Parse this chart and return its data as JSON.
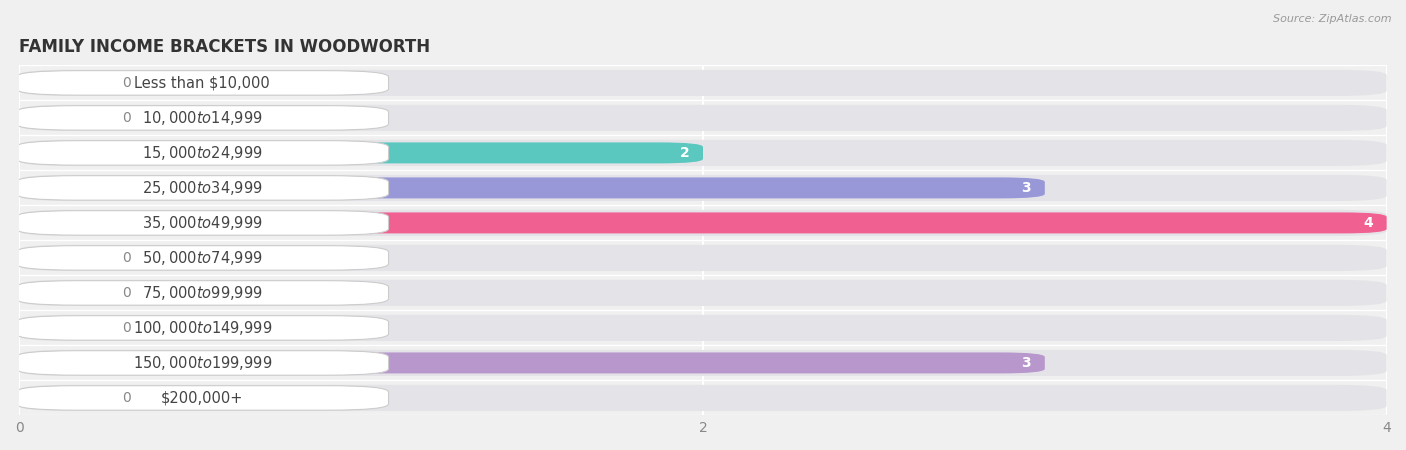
{
  "title": "FAMILY INCOME BRACKETS IN WOODWORTH",
  "source": "Source: ZipAtlas.com",
  "categories": [
    "Less than $10,000",
    "$10,000 to $14,999",
    "$15,000 to $24,999",
    "$25,000 to $34,999",
    "$35,000 to $49,999",
    "$50,000 to $74,999",
    "$75,000 to $99,999",
    "$100,000 to $149,999",
    "$150,000 to $199,999",
    "$200,000+"
  ],
  "values": [
    0,
    0,
    2,
    3,
    4,
    0,
    0,
    0,
    3,
    0
  ],
  "bar_colors": [
    "#a8cce0",
    "#c8b8e0",
    "#5bc8c0",
    "#9898d8",
    "#f06090",
    "#f5c898",
    "#f0a898",
    "#a8c0e8",
    "#b898cc",
    "#78c8c0"
  ],
  "label_colors_on_bar": [
    "#888888",
    "#888888",
    "#888888",
    "#ffffff",
    "#ffffff",
    "#888888",
    "#888888",
    "#888888",
    "#ffffff",
    "#888888"
  ],
  "background_color": "#f0f0f0",
  "bar_bg_color": "#e4e4e8",
  "white_label_bg": "#ffffff",
  "xlim": [
    0,
    4
  ],
  "xticks": [
    0,
    2,
    4
  ],
  "title_fontsize": 12,
  "label_fontsize": 10.5,
  "value_fontsize": 10,
  "n_bars": 10
}
